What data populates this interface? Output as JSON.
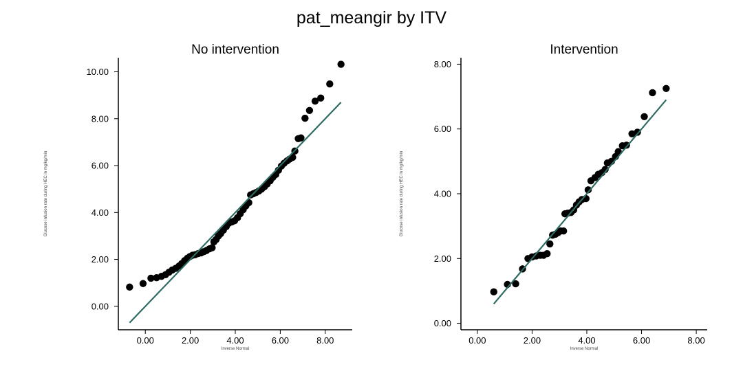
{
  "figure": {
    "title": "pat_meangir by ITV"
  },
  "colors": {
    "points": "#000000",
    "reference_line": "#2e6b62",
    "axis": "#000000",
    "background": "#ffffff"
  },
  "chart_data": [
    {
      "type": "scatter",
      "title": "No intervention",
      "xlabel": "Inverse Normal",
      "ylabel": "Glucose infusion rate during HEC in mg/kg/min",
      "xlim": [
        -1.2,
        9.2
      ],
      "ylim": [
        -1.0,
        10.6
      ],
      "xticks": [
        "0.00",
        "2.00",
        "4.00",
        "6.00",
        "8.00"
      ],
      "yticks": [
        "0.00",
        "2.00",
        "4.00",
        "6.00",
        "8.00",
        "10.00"
      ],
      "grid": false,
      "reference_line": {
        "x": [
          -0.7,
          8.7
        ],
        "y": [
          -0.7,
          8.7
        ]
      },
      "points": [
        [
          -0.7,
          0.82
        ],
        [
          -0.1,
          0.97
        ],
        [
          0.25,
          1.2
        ],
        [
          0.5,
          1.22
        ],
        [
          0.72,
          1.28
        ],
        [
          0.9,
          1.35
        ],
        [
          1.05,
          1.45
        ],
        [
          1.2,
          1.55
        ],
        [
          1.35,
          1.62
        ],
        [
          1.5,
          1.72
        ],
        [
          1.62,
          1.82
        ],
        [
          1.75,
          1.95
        ],
        [
          1.87,
          2.05
        ],
        [
          1.98,
          2.12
        ],
        [
          2.1,
          2.18
        ],
        [
          2.22,
          2.2
        ],
        [
          2.35,
          2.25
        ],
        [
          2.48,
          2.28
        ],
        [
          2.6,
          2.33
        ],
        [
          2.72,
          2.38
        ],
        [
          2.85,
          2.45
        ],
        [
          2.97,
          2.5
        ],
        [
          3.05,
          2.75
        ],
        [
          3.15,
          2.85
        ],
        [
          3.25,
          3.0
        ],
        [
          3.35,
          3.1
        ],
        [
          3.47,
          3.25
        ],
        [
          3.6,
          3.4
        ],
        [
          3.72,
          3.55
        ],
        [
          3.85,
          3.6
        ],
        [
          3.97,
          3.65
        ],
        [
          4.1,
          3.78
        ],
        [
          4.22,
          3.95
        ],
        [
          4.35,
          4.12
        ],
        [
          4.47,
          4.28
        ],
        [
          4.6,
          4.42
        ],
        [
          4.68,
          4.75
        ],
        [
          4.8,
          4.8
        ],
        [
          4.92,
          4.85
        ],
        [
          5.05,
          4.92
        ],
        [
          5.17,
          5.0
        ],
        [
          5.3,
          5.1
        ],
        [
          5.42,
          5.22
        ],
        [
          5.55,
          5.35
        ],
        [
          5.67,
          5.5
        ],
        [
          5.8,
          5.62
        ],
        [
          5.92,
          5.8
        ],
        [
          6.05,
          5.98
        ],
        [
          6.17,
          6.1
        ],
        [
          6.3,
          6.2
        ],
        [
          6.42,
          6.28
        ],
        [
          6.55,
          6.35
        ],
        [
          6.65,
          6.62
        ],
        [
          6.8,
          7.15
        ],
        [
          6.92,
          7.18
        ],
        [
          7.1,
          8.02
        ],
        [
          7.3,
          8.35
        ],
        [
          7.55,
          8.75
        ],
        [
          7.8,
          8.88
        ],
        [
          8.2,
          9.48
        ],
        [
          8.7,
          10.32
        ]
      ]
    },
    {
      "type": "scatter",
      "title": "Intervention",
      "xlabel": "Inverse Normal",
      "ylabel": "Glucose infusion rate during HEC in mg/kg/min",
      "xlim": [
        -0.6,
        8.4
      ],
      "ylim": [
        -0.2,
        8.2
      ],
      "xticks": [
        "0.00",
        "2.00",
        "4.00",
        "6.00",
        "8.00"
      ],
      "yticks": [
        "0.00",
        "2.00",
        "4.00",
        "6.00",
        "8.00"
      ],
      "grid": false,
      "reference_line": {
        "x": [
          0.6,
          6.9
        ],
        "y": [
          0.6,
          6.9
        ]
      },
      "points": [
        [
          0.6,
          0.97
        ],
        [
          1.1,
          1.2
        ],
        [
          1.4,
          1.22
        ],
        [
          1.65,
          1.68
        ],
        [
          1.85,
          2.0
        ],
        [
          2.0,
          2.05
        ],
        [
          2.15,
          2.08
        ],
        [
          2.3,
          2.1
        ],
        [
          2.42,
          2.1
        ],
        [
          2.55,
          2.15
        ],
        [
          2.65,
          2.45
        ],
        [
          2.75,
          2.72
        ],
        [
          2.85,
          2.75
        ],
        [
          2.95,
          2.8
        ],
        [
          3.05,
          2.85
        ],
        [
          3.15,
          2.85
        ],
        [
          3.2,
          3.38
        ],
        [
          3.3,
          3.4
        ],
        [
          3.42,
          3.42
        ],
        [
          3.52,
          3.5
        ],
        [
          3.62,
          3.65
        ],
        [
          3.72,
          3.75
        ],
        [
          3.82,
          3.82
        ],
        [
          3.97,
          3.85
        ],
        [
          4.05,
          4.12
        ],
        [
          4.15,
          4.4
        ],
        [
          4.3,
          4.5
        ],
        [
          4.42,
          4.6
        ],
        [
          4.55,
          4.65
        ],
        [
          4.67,
          4.75
        ],
        [
          4.75,
          4.95
        ],
        [
          4.9,
          5.0
        ],
        [
          5.05,
          5.15
        ],
        [
          5.15,
          5.3
        ],
        [
          5.3,
          5.48
        ],
        [
          5.45,
          5.5
        ],
        [
          5.65,
          5.85
        ],
        [
          5.85,
          5.9
        ],
        [
          6.1,
          6.38
        ],
        [
          6.4,
          7.12
        ],
        [
          6.9,
          7.25
        ]
      ]
    }
  ]
}
